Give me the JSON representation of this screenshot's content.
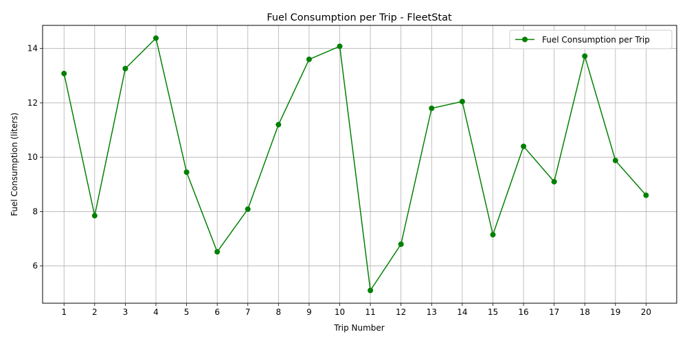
{
  "chart_data": {
    "type": "line",
    "title": "Fuel Consumption per Trip - FleetStat",
    "xlabel": "Trip Number",
    "ylabel": "Fuel Consumption (liters)",
    "x": [
      1,
      2,
      3,
      4,
      5,
      6,
      7,
      8,
      9,
      10,
      11,
      12,
      13,
      14,
      15,
      16,
      17,
      18,
      19,
      20
    ],
    "x_tick_labels": [
      "1",
      "2",
      "3",
      "4",
      "5",
      "6",
      "7",
      "8",
      "9",
      "10",
      "11",
      "12",
      "13",
      "14",
      "15",
      "16",
      "17",
      "18",
      "19",
      "20"
    ],
    "xlim": [
      0.3,
      21.0
    ],
    "ylim": [
      4.63,
      14.85
    ],
    "y_ticks": [
      6,
      8,
      10,
      12,
      14
    ],
    "y_tick_labels": [
      "6",
      "8",
      "10",
      "12",
      "14"
    ],
    "grid": true,
    "legend_position": "top-right",
    "series": [
      {
        "name": "Fuel Consumption per Trip",
        "color": "#008000",
        "marker": "circle",
        "values": [
          13.08,
          7.85,
          13.26,
          14.38,
          9.45,
          6.52,
          8.09,
          11.2,
          13.6,
          14.08,
          5.1,
          6.8,
          11.8,
          12.05,
          7.15,
          10.4,
          9.1,
          13.72,
          9.88,
          8.6
        ]
      }
    ]
  }
}
